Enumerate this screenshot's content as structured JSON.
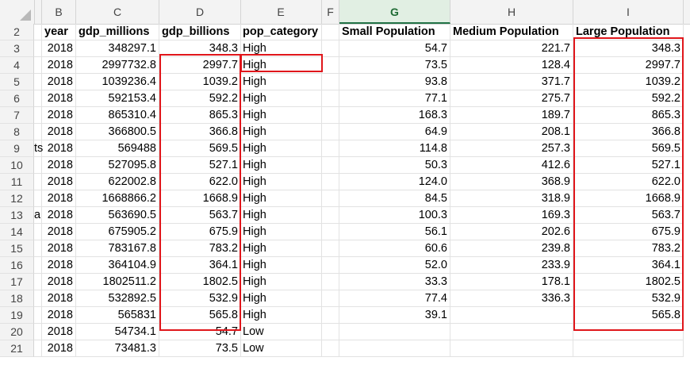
{
  "columns": [
    "B",
    "C",
    "D",
    "E",
    "F",
    "G",
    "H",
    "I"
  ],
  "selected_column": "G",
  "rows": [
    "2",
    "3",
    "4",
    "5",
    "6",
    "7",
    "8",
    "9",
    "10",
    "11",
    "12",
    "13",
    "14",
    "15",
    "16",
    "17",
    "18",
    "19",
    "20",
    "21"
  ],
  "headers": {
    "year": "year",
    "gdp_millions": "gdp_millions",
    "gdp_billions": "gdp_billions",
    "pop_category": "pop_category",
    "small": "Small Population",
    "medium": "Medium Population",
    "large": "Large Population"
  },
  "partial_text": {
    "row9": "ts",
    "row13": "a"
  },
  "data": [
    {
      "year": "2018",
      "gdp_millions": "348297.1",
      "gdp_billions": "348.3",
      "pop_category": "High",
      "small": "54.7",
      "medium": "221.7",
      "large": "348.3"
    },
    {
      "year": "2018",
      "gdp_millions": "2997732.8",
      "gdp_billions": "2997.7",
      "pop_category": "High",
      "small": "73.5",
      "medium": "128.4",
      "large": "2997.7"
    },
    {
      "year": "2018",
      "gdp_millions": "1039236.4",
      "gdp_billions": "1039.2",
      "pop_category": "High",
      "small": "93.8",
      "medium": "371.7",
      "large": "1039.2"
    },
    {
      "year": "2018",
      "gdp_millions": "592153.4",
      "gdp_billions": "592.2",
      "pop_category": "High",
      "small": "77.1",
      "medium": "275.7",
      "large": "592.2"
    },
    {
      "year": "2018",
      "gdp_millions": "865310.4",
      "gdp_billions": "865.3",
      "pop_category": "High",
      "small": "168.3",
      "medium": "189.7",
      "large": "865.3"
    },
    {
      "year": "2018",
      "gdp_millions": "366800.5",
      "gdp_billions": "366.8",
      "pop_category": "High",
      "small": "64.9",
      "medium": "208.1",
      "large": "366.8"
    },
    {
      "year": "2018",
      "gdp_millions": "569488",
      "gdp_billions": "569.5",
      "pop_category": "High",
      "small": "114.8",
      "medium": "257.3",
      "large": "569.5"
    },
    {
      "year": "2018",
      "gdp_millions": "527095.8",
      "gdp_billions": "527.1",
      "pop_category": "High",
      "small": "50.3",
      "medium": "412.6",
      "large": "527.1"
    },
    {
      "year": "2018",
      "gdp_millions": "622002.8",
      "gdp_billions": "622.0",
      "pop_category": "High",
      "small": "124.0",
      "medium": "368.9",
      "large": "622.0"
    },
    {
      "year": "2018",
      "gdp_millions": "1668866.2",
      "gdp_billions": "1668.9",
      "pop_category": "High",
      "small": "84.5",
      "medium": "318.9",
      "large": "1668.9"
    },
    {
      "year": "2018",
      "gdp_millions": "563690.5",
      "gdp_billions": "563.7",
      "pop_category": "High",
      "small": "100.3",
      "medium": "169.3",
      "large": "563.7"
    },
    {
      "year": "2018",
      "gdp_millions": "675905.2",
      "gdp_billions": "675.9",
      "pop_category": "High",
      "small": "56.1",
      "medium": "202.6",
      "large": "675.9"
    },
    {
      "year": "2018",
      "gdp_millions": "783167.8",
      "gdp_billions": "783.2",
      "pop_category": "High",
      "small": "60.6",
      "medium": "239.8",
      "large": "783.2"
    },
    {
      "year": "2018",
      "gdp_millions": "364104.9",
      "gdp_billions": "364.1",
      "pop_category": "High",
      "small": "52.0",
      "medium": "233.9",
      "large": "364.1"
    },
    {
      "year": "2018",
      "gdp_millions": "1802511.2",
      "gdp_billions": "1802.5",
      "pop_category": "High",
      "small": "33.3",
      "medium": "178.1",
      "large": "1802.5"
    },
    {
      "year": "2018",
      "gdp_millions": "532892.5",
      "gdp_billions": "532.9",
      "pop_category": "High",
      "small": "77.4",
      "medium": "336.3",
      "large": "532.9"
    },
    {
      "year": "2018",
      "gdp_millions": "565831",
      "gdp_billions": "565.8",
      "pop_category": "High",
      "small": "39.1",
      "medium": "",
      "large": "565.8"
    },
    {
      "year": "2018",
      "gdp_millions": "54734.1",
      "gdp_billions": "54.7",
      "pop_category": "Low",
      "small": "",
      "medium": "",
      "large": ""
    },
    {
      "year": "2018",
      "gdp_millions": "73481.3",
      "gdp_billions": "73.5",
      "pop_category": "Low",
      "small": "",
      "medium": "",
      "large": ""
    }
  ],
  "colors": {
    "highlight": "#e0161b",
    "selected_header": "#217346"
  }
}
